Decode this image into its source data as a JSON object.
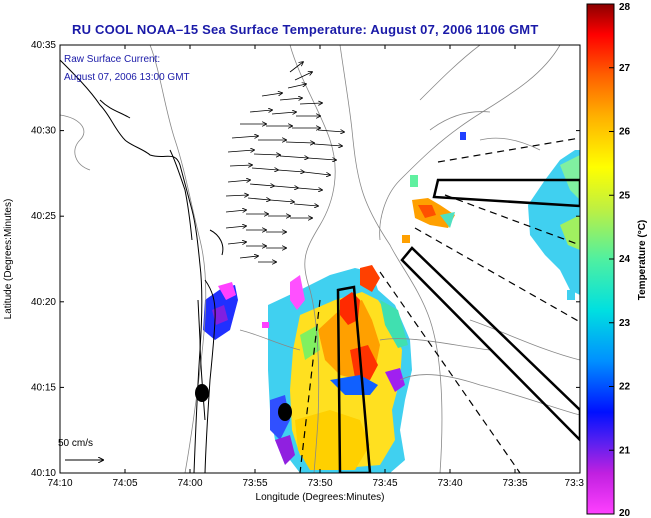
{
  "title": "RU COOL  NOAA–15  Sea Surface Temperature:  August 07, 2006 1106 GMT",
  "annotation": {
    "line1": "Raw Surface Current:",
    "line2": "August 07, 2006 13:00 GMT"
  },
  "xaxis": {
    "label": "Longitude (Degrees:Minutes)",
    "ticks": [
      "74:10",
      "74:05",
      "74:00",
      "73:55",
      "73:50",
      "73:45",
      "73:40",
      "73:35",
      "73:3"
    ]
  },
  "yaxis": {
    "label": "Latitude (Degrees:Minutes)",
    "ticks": [
      "40:35",
      "40:30",
      "40:25",
      "40:20",
      "40:15",
      "40:10"
    ]
  },
  "scale": {
    "label": "50 cm/s"
  },
  "colorbar": {
    "label": "Temperature (°C)",
    "ticks": [
      "28",
      "27",
      "26",
      "25",
      "24",
      "23",
      "22",
      "21",
      "20"
    ],
    "min": 20,
    "max": 28,
    "colors": [
      "#ff40ff",
      "#8a2be2",
      "#0000ff",
      "#00bfff",
      "#7fffd4",
      "#adff2f",
      "#ffff00",
      "#ffa500",
      "#ff0000",
      "#8b0000"
    ]
  },
  "colors": {
    "title": "#1a1aa8",
    "annotation": "#1a1aa8",
    "frame": "#000000"
  }
}
